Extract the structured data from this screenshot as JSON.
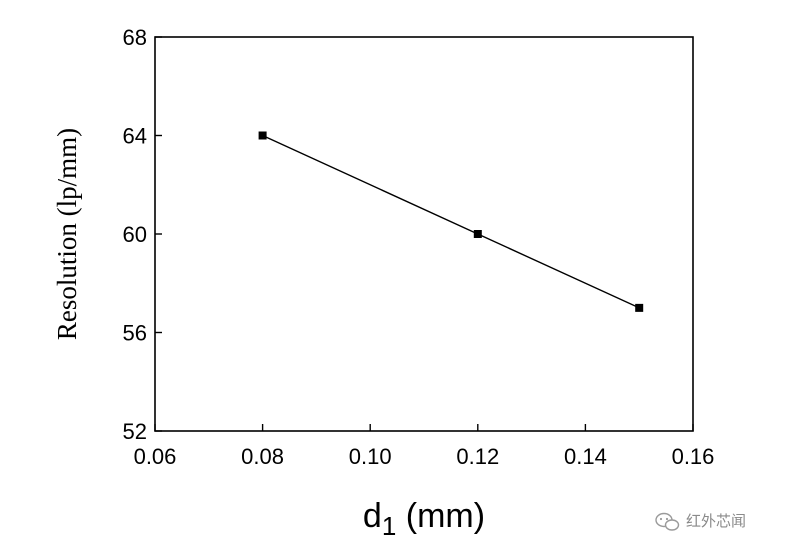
{
  "chart_data": {
    "type": "line",
    "xlabel_main": "d",
    "xlabel_sub": "1",
    "xlabel_unit": " (mm)",
    "ylabel": "Resolution (lp/mm)",
    "xlim": [
      0.06,
      0.16
    ],
    "ylim": [
      52,
      68
    ],
    "xticks": [
      0.06,
      0.08,
      0.1,
      0.12,
      0.14,
      0.16
    ],
    "xtick_labels": [
      "0.06",
      "0.08",
      "0.10",
      "0.12",
      "0.14",
      "0.16"
    ],
    "yticks": [
      52,
      56,
      60,
      64,
      68
    ],
    "ytick_labels": [
      "52",
      "56",
      "60",
      "64",
      "68"
    ],
    "x": [
      0.08,
      0.12,
      0.15
    ],
    "y": [
      64,
      60,
      57
    ],
    "marker": "square",
    "line_color": "#000000",
    "grid": false
  },
  "watermark": {
    "text": "红外芯闻",
    "icon": "wechat-icon"
  }
}
